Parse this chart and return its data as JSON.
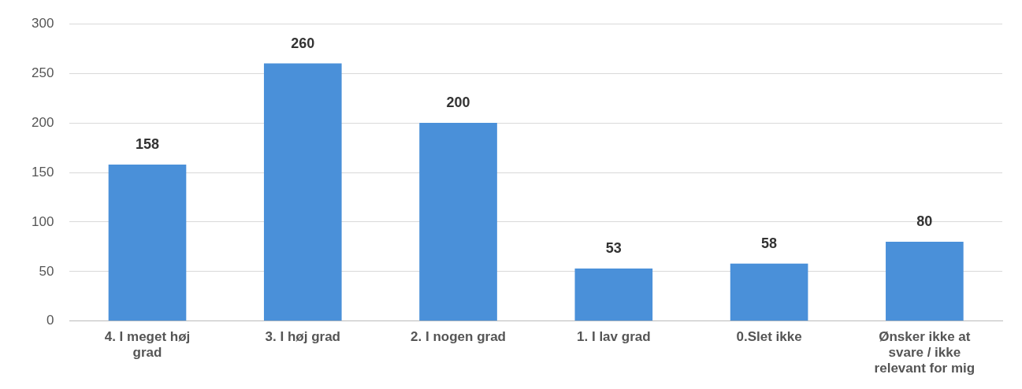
{
  "chart_data": {
    "type": "bar",
    "categories": [
      "4. I meget høj grad",
      "3. I høj grad",
      "2. I nogen grad",
      "1. I lav grad",
      "0.Slet ikke",
      "Ønsker ikke at svare / ikke relevant for mig"
    ],
    "values": [
      158,
      260,
      200,
      53,
      58,
      80
    ],
    "color": "#4a90d9",
    "ylim": [
      0,
      300
    ],
    "yticks": [
      0,
      50,
      100,
      150,
      200,
      250,
      300
    ],
    "grid": "y",
    "data_labels": true
  }
}
